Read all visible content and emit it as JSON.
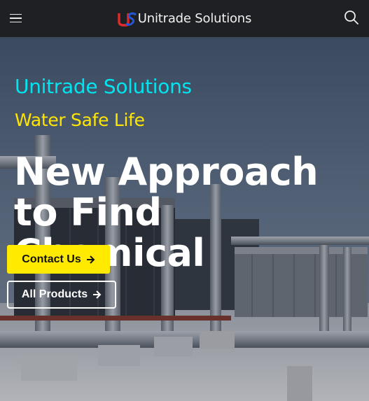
{
  "header": {
    "logo_mark": "US",
    "logo_text": "Unitrade Solutions",
    "menu_icon": "hamburger-menu-icon",
    "search_icon": "search-icon"
  },
  "hero": {
    "brand": "Unitrade Solutions",
    "tagline": "Water Safe Life",
    "headline": "New Approach to Find Chemical",
    "contact_label": "Contact Us",
    "products_label": "All Products",
    "arrow_icon": "arrow-right-icon"
  },
  "colors": {
    "header_bg": "#1f2024",
    "brand": "#00e5f0",
    "tagline": "#ffe600",
    "contact_bg": "#ffea00",
    "logo_red": "#e12a2a",
    "logo_blue": "#2456d6"
  }
}
